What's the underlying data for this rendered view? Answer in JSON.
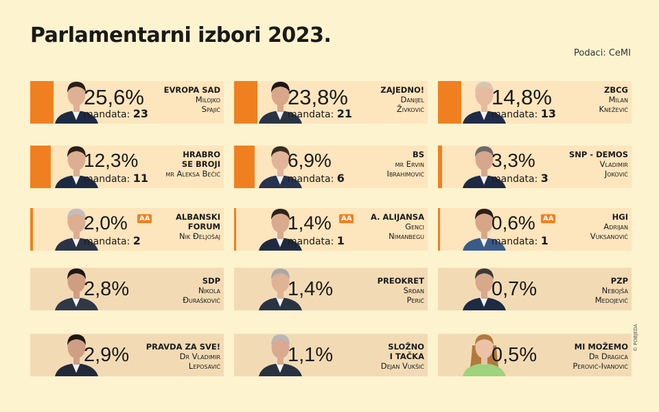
{
  "title": "Parlamentarni izbori 2023.",
  "source": "Podaci: CeMI",
  "credit": "© POBJEDA",
  "seats_label": "mandata:",
  "aa_label": "AA",
  "cards": [
    {
      "party": "EVROPA SAD",
      "candidate": "Milojko Spajić",
      "percent": "25,6%",
      "seats": "23"
    },
    {
      "party": "ZAJEDNO!",
      "candidate": "Danijel Živković",
      "percent": "23,8%",
      "seats": "21"
    },
    {
      "party": "ZBCG",
      "candidate": "Milan Knežević",
      "percent": "14,8%",
      "seats": "13"
    },
    {
      "party": "HRABRO SE BROJI",
      "candidate": "mr Aleksa Bečić",
      "percent": "12,3%",
      "seats": "11"
    },
    {
      "party": "BS",
      "candidate": "mr Ervin Ibrahimović",
      "percent": "6,9%",
      "seats": "6"
    },
    {
      "party": "SNP - DEMOS",
      "candidate": "Vladimir Joković",
      "percent": "3,3%",
      "seats": "3"
    },
    {
      "party": "ALBANSKI FORUM",
      "candidate": "Nik Đeljošaj",
      "percent": "2,0%",
      "seats": "2",
      "aa": true
    },
    {
      "party": "A. ALIJANSA",
      "candidate": "Genci Nimanbegu",
      "percent": "1,4%",
      "seats": "1",
      "aa": true
    },
    {
      "party": "HGI",
      "candidate": "Adrijan Vuksanović",
      "percent": "0,6%",
      "seats": "1",
      "aa": true
    },
    {
      "party": "SDP",
      "candidate": "Nikola Đurašković",
      "percent": "2,8%"
    },
    {
      "party": "PREOKRET",
      "candidate": "Srđan Perić",
      "percent": "1,4%"
    },
    {
      "party": "PZP",
      "candidate": "Nebojša Medojević",
      "percent": "0,7%"
    },
    {
      "party": "PRAVDA ZA SVE!",
      "candidate": "Dr Vladimir Leposavić",
      "percent": "2,9%"
    },
    {
      "party": "SLOŽNO I TAČKA",
      "candidate": "Dejan Vukšić",
      "percent": "1,1%"
    },
    {
      "party": "MI MOŽEMO",
      "candidate": "Dr Dragica Perović-Ivanović",
      "percent": "0,5%"
    }
  ]
}
